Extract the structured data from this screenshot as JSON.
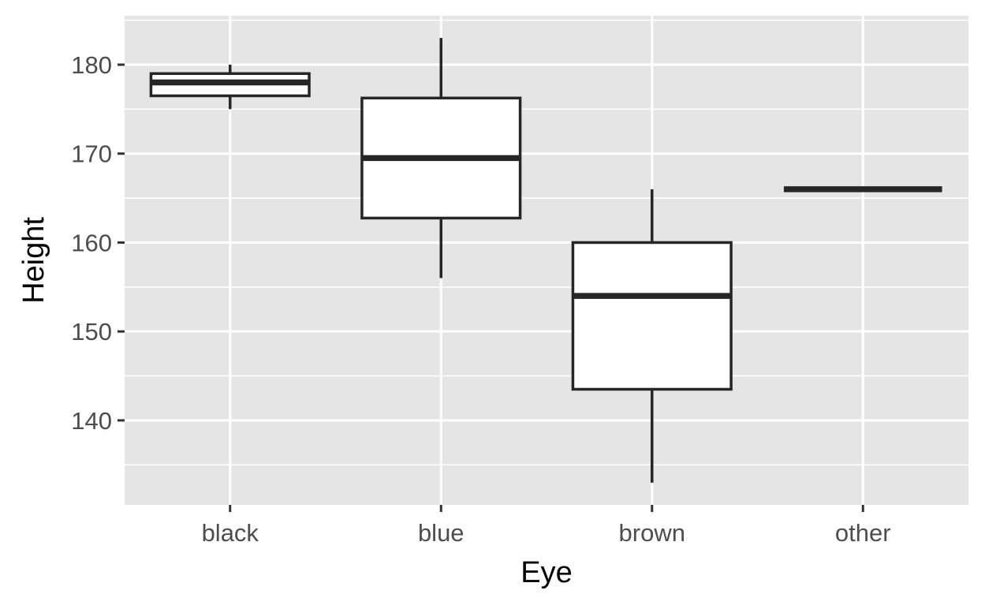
{
  "chart_data": {
    "type": "boxplot",
    "xlabel": "Eye",
    "ylabel": "Height",
    "ylim": [
      130.5,
      185.5
    ],
    "y_ticks": [
      140,
      150,
      160,
      170,
      180
    ],
    "y_tick_labels": [
      "140",
      "150",
      "160",
      "170",
      "180"
    ],
    "grid": true,
    "categories": [
      "black",
      "blue",
      "brown",
      "other"
    ],
    "boxes": [
      {
        "category": "black",
        "whisker_low": 175,
        "q1": 176.5,
        "median": 178,
        "q3": 179,
        "whisker_high": 180
      },
      {
        "category": "blue",
        "whisker_low": 156,
        "q1": 162.75,
        "median": 169.5,
        "q3": 176.25,
        "whisker_high": 183
      },
      {
        "category": "brown",
        "whisker_low": 133,
        "q1": 143.5,
        "median": 154,
        "q3": 160,
        "whisker_high": 166
      },
      {
        "category": "other",
        "whisker_low": 166,
        "q1": 166,
        "median": 166,
        "q3": 166,
        "whisker_high": 166
      }
    ],
    "colors": {
      "panel_background": "#e5e5e5",
      "grid": "#ffffff",
      "box_fill": "#ffffff",
      "box_stroke": "#262626",
      "tick": "#333333",
      "tick_label": "#4d4d4d"
    }
  }
}
